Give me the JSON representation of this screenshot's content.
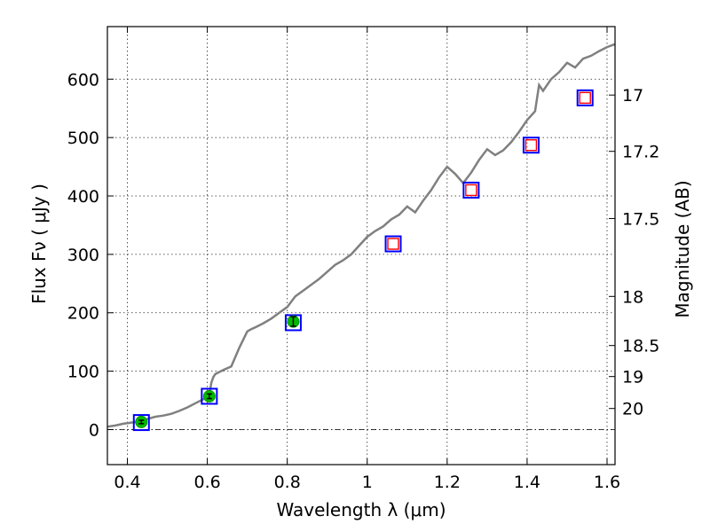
{
  "chart_data": {
    "type": "scatter",
    "xlabel": "Wavelength  λ (μm)",
    "ylabel": "Flux  Fν  ( μJy )",
    "ylabel_right": "Magnitude (AB)",
    "xlim": [
      0.35,
      1.62
    ],
    "ylim": [
      -60,
      690
    ],
    "grid": true,
    "x_ticks": [
      0.4,
      0.6,
      0.8,
      1.0,
      1.2,
      1.4,
      1.6
    ],
    "x_tick_labels": [
      "0.4",
      "0.6",
      "0.8",
      "1",
      "1.2",
      "1.4",
      "1.6"
    ],
    "y_ticks": [
      0,
      100,
      200,
      300,
      400,
      500,
      600
    ],
    "y_tick_labels": [
      "0",
      "100",
      "200",
      "300",
      "400",
      "500",
      "600"
    ],
    "right_ticks": [
      {
        "label": "17",
        "flux": 572.8
      },
      {
        "label": "17.2",
        "flux": 476.4
      },
      {
        "label": "17.5",
        "flux": 361.4
      },
      {
        "label": "18",
        "flux": 228.0
      },
      {
        "label": "18.5",
        "flux": 143.9
      },
      {
        "label": "19",
        "flux": 90.8
      },
      {
        "label": "20",
        "flux": 36.1
      }
    ],
    "zero_line": 0,
    "colors": {
      "spectrum": "#808080",
      "model_box": "#0000ff",
      "observed_box": "#ff0000",
      "observed_point": "#00bb00",
      "errorbar": "#000000"
    },
    "series": [
      {
        "kind": "spectrum",
        "x": [
          0.35,
          0.37,
          0.39,
          0.41,
          0.43,
          0.45,
          0.47,
          0.49,
          0.51,
          0.53,
          0.55,
          0.57,
          0.59,
          0.6,
          0.605,
          0.61,
          0.615,
          0.62,
          0.64,
          0.66,
          0.68,
          0.7,
          0.71,
          0.72,
          0.74,
          0.76,
          0.78,
          0.8,
          0.82,
          0.84,
          0.86,
          0.88,
          0.9,
          0.92,
          0.94,
          0.96,
          0.98,
          1.0,
          1.02,
          1.04,
          1.06,
          1.08,
          1.1,
          1.12,
          1.14,
          1.16,
          1.18,
          1.2,
          1.22,
          1.24,
          1.26,
          1.28,
          1.3,
          1.32,
          1.34,
          1.36,
          1.38,
          1.4,
          1.42,
          1.43,
          1.44,
          1.46,
          1.48,
          1.5,
          1.52,
          1.54,
          1.56,
          1.58,
          1.6,
          1.62
        ],
        "y": [
          5,
          7,
          10,
          12,
          14,
          18,
          22,
          24,
          27,
          32,
          38,
          45,
          52,
          58,
          60,
          80,
          90,
          95,
          102,
          108,
          140,
          168,
          172,
          175,
          182,
          190,
          200,
          210,
          228,
          238,
          248,
          258,
          270,
          282,
          290,
          300,
          315,
          330,
          340,
          348,
          360,
          368,
          382,
          372,
          392,
          410,
          432,
          450,
          438,
          422,
          440,
          462,
          480,
          470,
          478,
          492,
          510,
          530,
          545,
          590,
          580,
          600,
          612,
          628,
          620,
          635,
          640,
          648,
          655,
          660
        ]
      },
      {
        "kind": "model",
        "name": "",
        "x": [
          0.435,
          0.605,
          0.815,
          1.065,
          1.26,
          1.41,
          1.545
        ],
        "y": [
          12,
          57,
          183,
          318,
          410,
          487,
          568
        ]
      },
      {
        "kind": "observed_limits",
        "name": "",
        "x": [
          1.065,
          1.26,
          1.41,
          1.545
        ],
        "y": [
          318,
          410,
          487,
          568
        ]
      },
      {
        "kind": "observed",
        "name": "",
        "x": [
          0.435,
          0.605,
          0.815
        ],
        "y": [
          13,
          57,
          185
        ],
        "err": [
          3,
          4,
          8
        ]
      }
    ]
  }
}
